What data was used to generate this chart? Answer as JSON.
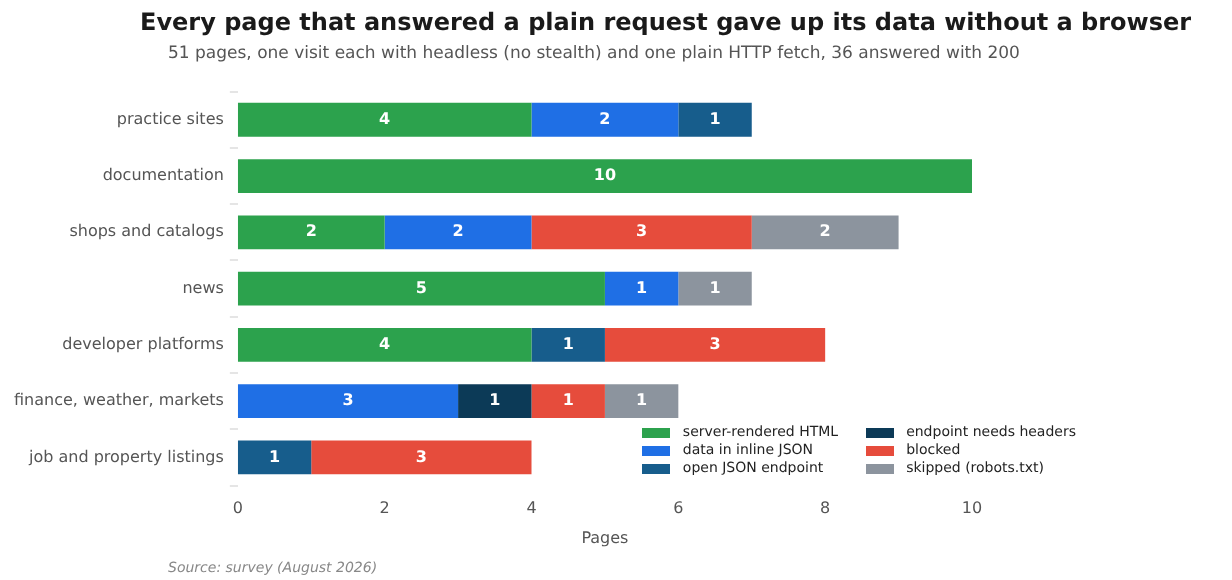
{
  "chart_data": {
    "type": "bar",
    "orientation": "horizontal",
    "stacked": true,
    "title": "Every page that answered a plain request gave up its data without a browser",
    "subtitle": "51 pages, one visit each with headless (no stealth) and one plain HTTP fetch, 36 answered with 200",
    "xlabel": "Pages",
    "annotations": [
      "Source: survey (August 2026)"
    ],
    "categories": [
      "practice sites",
      "documentation",
      "shops and catalogs",
      "news",
      "developer platforms",
      "finance, weather, markets",
      "job and property listings"
    ],
    "series": [
      {
        "name": "server-rendered HTML",
        "color": "#2ca24d",
        "values": [
          4,
          10,
          2,
          5,
          4,
          null,
          null
        ]
      },
      {
        "name": "data in inline JSON",
        "color": "#1f6fe5",
        "values": [
          2,
          null,
          2,
          1,
          null,
          3,
          null
        ]
      },
      {
        "name": "open JSON endpoint",
        "color": "#175d8c",
        "values": [
          1,
          null,
          null,
          null,
          1,
          null,
          1
        ]
      },
      {
        "name": "endpoint needs headers",
        "color": "#0c3a57",
        "values": [
          null,
          null,
          null,
          null,
          null,
          1,
          null
        ]
      },
      {
        "name": "blocked",
        "color": "#e64c3c",
        "values": [
          null,
          null,
          3,
          null,
          3,
          1,
          3
        ]
      },
      {
        "name": "skipped (robots.txt)",
        "color": "#8c949e",
        "values": [
          null,
          null,
          2,
          1,
          null,
          1,
          null
        ]
      }
    ],
    "xlim": [
      0,
      10
    ],
    "xticks": [
      0,
      2,
      4,
      6,
      8,
      10
    ],
    "grid": false,
    "legend": "bottom right",
    "data_labels": true
  }
}
